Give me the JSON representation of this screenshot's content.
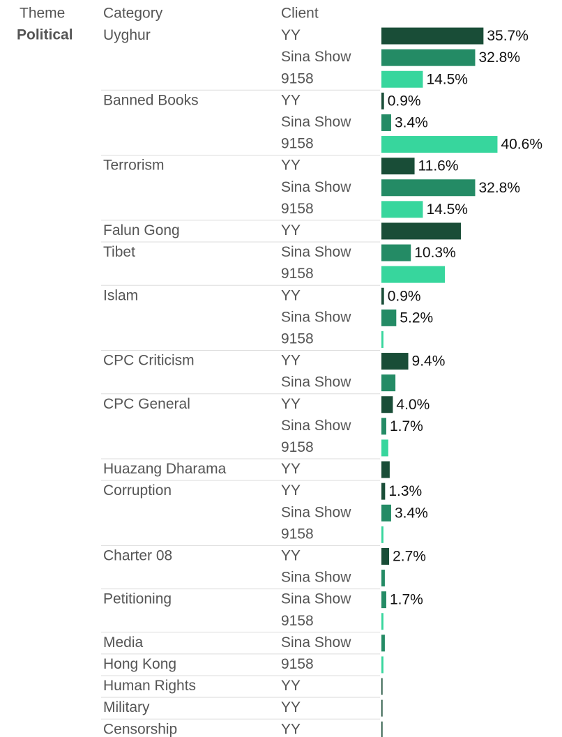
{
  "chart_data": {
    "type": "bar",
    "headers": [
      "Theme",
      "Category",
      "Client"
    ],
    "theme": "Political",
    "xlim": [
      0,
      60
    ],
    "groups": [
      {
        "category": "Uyghur",
        "clients": [
          {
            "name": "YY",
            "color": "#194d37",
            "value": 35.7,
            "value_label": "35.7%"
          },
          {
            "name": "Sina Show",
            "color": "#248b65",
            "value": 32.8,
            "value_label": "32.8%"
          },
          {
            "name": "9158",
            "color": "#37d69d",
            "value": 14.5,
            "value_label": "14.5%"
          }
        ]
      },
      {
        "category": "Banned Books",
        "clients": [
          {
            "name": "YY",
            "color": "#194d37",
            "value": 0.9,
            "value_label": "0.9%"
          },
          {
            "name": "Sina Show",
            "color": "#248b65",
            "value": 3.4,
            "value_label": "3.4%"
          },
          {
            "name": "9158",
            "color": "#37d69d",
            "value": 40.6,
            "value_label": "40.6%"
          }
        ]
      },
      {
        "category": "Terrorism",
        "clients": [
          {
            "name": "YY",
            "color": "#194d37",
            "value": 11.6,
            "value_label": "11.6%"
          },
          {
            "name": "Sina Show",
            "color": "#248b65",
            "value": 32.8,
            "value_label": "32.8%"
          },
          {
            "name": "9158",
            "color": "#37d69d",
            "value": 14.5,
            "value_label": "14.5%"
          }
        ]
      },
      {
        "category": "Falun Gong",
        "clients": [
          {
            "name": "YY",
            "color": "#194d37",
            "value": 27.8
          }
        ]
      },
      {
        "category": "Tibet",
        "clients": [
          {
            "name": "Sina Show",
            "color": "#248b65",
            "value": 10.3,
            "value_label": "10.3%"
          },
          {
            "name": "9158",
            "color": "#37d69d",
            "value": 22.2
          }
        ]
      },
      {
        "category": "Islam",
        "clients": [
          {
            "name": "YY",
            "color": "#194d37",
            "value": 0.9,
            "value_label": "0.9%"
          },
          {
            "name": "Sina Show",
            "color": "#248b65",
            "value": 5.2,
            "value_label": "5.2%"
          },
          {
            "name": "9158",
            "color": "#37d69d",
            "value": 0.7
          }
        ]
      },
      {
        "category": "CPC Criticism",
        "clients": [
          {
            "name": "YY",
            "color": "#194d37",
            "value": 9.4,
            "value_label": "9.4%"
          },
          {
            "name": "Sina Show",
            "color": "#248b65",
            "value": 4.9
          }
        ]
      },
      {
        "category": "CPC General",
        "clients": [
          {
            "name": "YY",
            "color": "#194d37",
            "value": 4.0,
            "value_label": "4.0%"
          },
          {
            "name": "Sina Show",
            "color": "#248b65",
            "value": 1.7,
            "value_label": "1.7%"
          },
          {
            "name": "9158",
            "color": "#37d69d",
            "value": 2.4
          }
        ]
      },
      {
        "category": "Huazang Dharama",
        "clients": [
          {
            "name": "YY",
            "color": "#194d37",
            "value": 2.9
          }
        ]
      },
      {
        "category": "Corruption",
        "clients": [
          {
            "name": "YY",
            "color": "#194d37",
            "value": 1.3,
            "value_label": "1.3%"
          },
          {
            "name": "Sina Show",
            "color": "#248b65",
            "value": 3.4,
            "value_label": "3.4%"
          },
          {
            "name": "9158",
            "color": "#37d69d",
            "value": 0.7
          }
        ]
      },
      {
        "category": "Charter 08",
        "clients": [
          {
            "name": "YY",
            "color": "#194d37",
            "value": 2.7,
            "value_label": "2.7%"
          },
          {
            "name": "Sina Show",
            "color": "#248b65",
            "value": 1.2
          }
        ]
      },
      {
        "category": "Petitioning",
        "clients": [
          {
            "name": "Sina Show",
            "color": "#248b65",
            "value": 1.7,
            "value_label": "1.7%"
          },
          {
            "name": "9158",
            "color": "#37d69d",
            "value": 0.7
          }
        ]
      },
      {
        "category": "Media",
        "clients": [
          {
            "name": "Sina Show",
            "color": "#248b65",
            "value": 1.2
          }
        ]
      },
      {
        "category": "Hong Kong",
        "clients": [
          {
            "name": "9158",
            "color": "#37d69d",
            "value": 0.7
          }
        ]
      },
      {
        "category": "Human Rights",
        "clients": [
          {
            "name": "YY",
            "color": "#194d37",
            "value": 0.4
          }
        ]
      },
      {
        "category": "Military",
        "clients": [
          {
            "name": "YY",
            "color": "#194d37",
            "value": 0.4
          }
        ]
      },
      {
        "category": "Censorship",
        "clients": [
          {
            "name": "YY",
            "color": "#194d37",
            "value": 0.4
          }
        ]
      }
    ]
  }
}
